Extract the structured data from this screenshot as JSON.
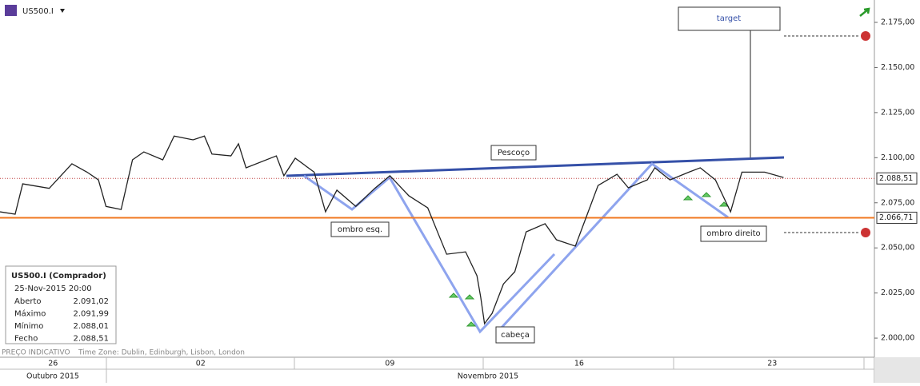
{
  "header": {
    "symbol": "US500.I"
  },
  "status": {
    "price_note": "PREÇO INDICATIVO",
    "timezone": "Time Zone: Dublin, Edinburgh, Lisbon, London"
  },
  "chart_data": {
    "type": "line",
    "x": [
      -2.8,
      -2.4,
      -2.2,
      -1.5,
      -0.9,
      -0.5,
      -0.2,
      0.0,
      0.4,
      0.7,
      1.0,
      1.5,
      1.8,
      2.3,
      2.6,
      2.8,
      3.3,
      3.5,
      3.7,
      4.5,
      4.7,
      5.0,
      5.5,
      5.8,
      6.1,
      6.6,
      7.1,
      7.5,
      8.0,
      8.5,
      8.8,
      9.0,
      9.5,
      9.8,
      9.9,
      10.0,
      10.2,
      10.5,
      10.8,
      11.1,
      11.6,
      11.9,
      12.4,
      12.7,
      13.0,
      13.5,
      13.8,
      14.3,
      14.5,
      14.9,
      15.4,
      15.7,
      16.1,
      16.5,
      16.8,
      17.4,
      17.9
    ],
    "values": [
      2070,
      2068.7,
      2085.5,
      2083,
      2096.6,
      2092,
      2087.7,
      2073,
      2071.3,
      2098.8,
      2103.2,
      2098.8,
      2112,
      2109.9,
      2112,
      2102,
      2101,
      2107.7,
      2094.4,
      2101,
      2090,
      2099.7,
      2092,
      2070,
      2082,
      2073,
      2083,
      2090,
      2078.9,
      2072.2,
      2056.7,
      2046.5,
      2047.8,
      2034.6,
      2022.6,
      2008,
      2013.7,
      2030,
      2036.8,
      2058.9,
      2063.4,
      2054.5,
      2051,
      2067.8,
      2084.6,
      2090.8,
      2083.3,
      2087.7,
      2094.4,
      2087.7,
      2092,
      2094.4,
      2087.7,
      2070,
      2092,
      2092,
      2089
    ],
    "color": "#222222",
    "xlim": [
      -2.8,
      20.3
    ],
    "xticks": [
      {
        "value": -1.4,
        "label": "26"
      },
      {
        "value": 2.5,
        "label": "02"
      },
      {
        "value": 7.5,
        "label": "09"
      },
      {
        "value": 12.5,
        "label": "16"
      },
      {
        "value": 17.6,
        "label": "23"
      }
    ],
    "months": [
      "Outubro 2015",
      "Novembro 2015"
    ],
    "ylim": [
      1989.4,
      2187.4
    ],
    "yticks": [
      {
        "value": 2000,
        "label": "2.000,00"
      },
      {
        "value": 2025,
        "label": "2.025,00"
      },
      {
        "value": 2050,
        "label": "2.050,00"
      },
      {
        "value": 2075,
        "label": "2.075,00"
      },
      {
        "value": 2100,
        "label": "2.100,00"
      },
      {
        "value": 2125,
        "label": "2.125,00"
      },
      {
        "value": 2150,
        "label": "2.150,00"
      },
      {
        "value": 2175,
        "label": "2.175,00"
      }
    ],
    "levels": [
      {
        "value": 2066.71,
        "label": "2.066,71",
        "color": "#f07820"
      },
      {
        "value": 2088.51,
        "label": "2.088,51",
        "color": "#c04040"
      }
    ],
    "annotations": [
      "target",
      "Pescoço",
      "ombro esq.",
      "cabeça",
      "ombro direito"
    ]
  },
  "info_box": {
    "title": "US500.I (Comprador)",
    "datetime": "25-Nov-2015 20:00",
    "rows": [
      [
        "Aberto",
        "2.091,02"
      ],
      [
        "Máximo",
        "2.091,99"
      ],
      [
        "Mínimo",
        "2.088,01"
      ],
      [
        "Fecho",
        "2.088,51"
      ]
    ]
  }
}
